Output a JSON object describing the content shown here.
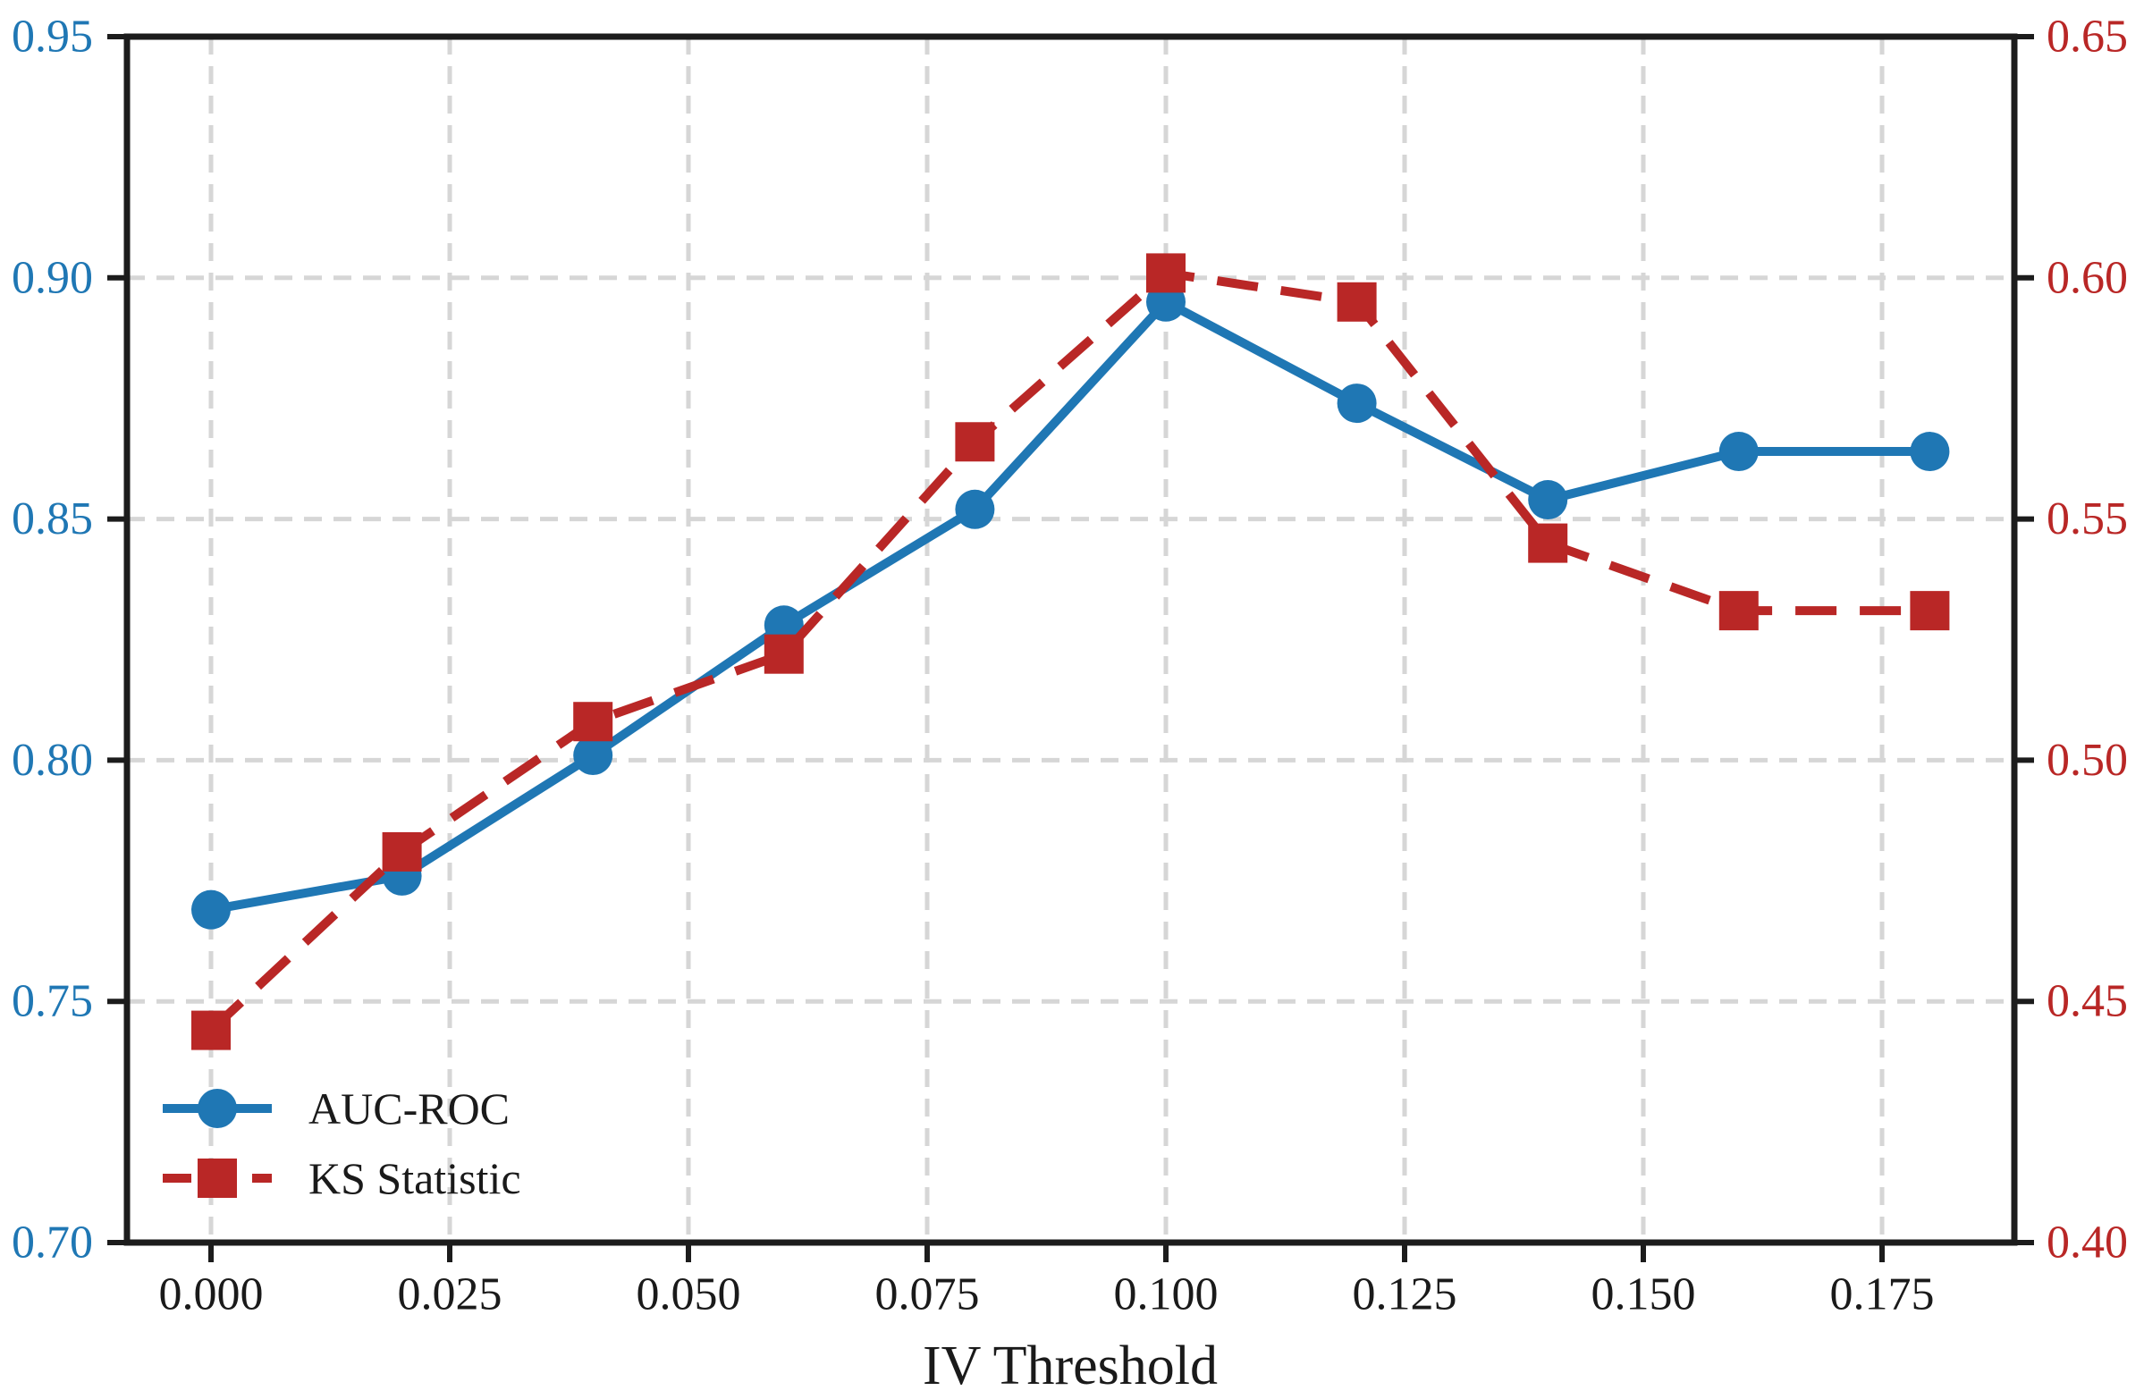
{
  "chart_data": {
    "type": "line",
    "title": "",
    "xlabel": "IV Threshold",
    "ylabel_left": "",
    "ylabel_right": "",
    "x": [
      0.0,
      0.02,
      0.04,
      0.06,
      0.08,
      0.1,
      0.12,
      0.14,
      0.16,
      0.18
    ],
    "series": [
      {
        "name": "AUC-ROC",
        "axis": "left",
        "color": "#1f77b4",
        "line_style": "solid",
        "marker": "circle",
        "values": [
          0.769,
          0.776,
          0.801,
          0.828,
          0.852,
          0.895,
          0.874,
          0.854,
          0.864,
          0.864
        ]
      },
      {
        "name": "KS Statistic",
        "axis": "right",
        "color": "#b92726",
        "line_style": "dashed",
        "marker": "square",
        "values": [
          0.444,
          0.481,
          0.508,
          0.522,
          0.566,
          0.601,
          0.595,
          0.545,
          0.531,
          0.531
        ]
      }
    ],
    "x_axis": {
      "ticks": [
        0.0,
        0.025,
        0.05,
        0.075,
        0.1,
        0.125,
        0.15,
        0.175
      ],
      "decimals": 3,
      "color": "#1a1a1a"
    },
    "left_axis": {
      "ticks": [
        0.7,
        0.75,
        0.8,
        0.85,
        0.9,
        0.95
      ],
      "range": [
        0.7,
        0.95
      ],
      "decimals": 2,
      "color": "#1f77b4"
    },
    "right_axis": {
      "ticks": [
        0.4,
        0.45,
        0.5,
        0.55,
        0.6,
        0.65
      ],
      "range": [
        0.4,
        0.65
      ],
      "decimals": 2,
      "color": "#b92726"
    },
    "grid": true,
    "grid_color": "#d6d6d6",
    "legend": {
      "position": "lower left",
      "items": [
        "AUC-ROC",
        "KS Statistic"
      ]
    }
  }
}
